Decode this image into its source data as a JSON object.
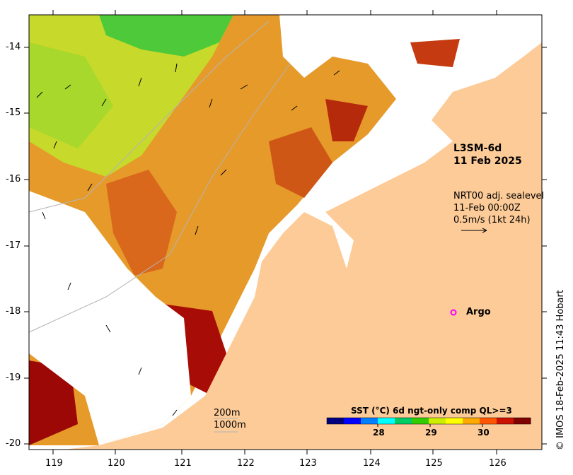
{
  "map": {
    "product": "L3SM-6d",
    "date": "11 Feb 2025",
    "current_source": "NRT00 adj. sealevel",
    "current_time": "11-Feb 00:00Z",
    "vector_scale": "0.5m/s (1kt 24h)",
    "argo_label": "Argo",
    "argo_marker": "o",
    "isobath_1": "200m",
    "isobath_2": "1000m",
    "credit": "© IMOS 18-Feb-2025 11:43 Hobart",
    "lon_ticks": [
      "119",
      "120",
      "121",
      "122",
      "123",
      "124",
      "125",
      "126"
    ],
    "lat_ticks": [
      "-14",
      "-15",
      "-16",
      "-17",
      "-18",
      "-19",
      "-20"
    ]
  },
  "colorbar": {
    "title": "SST (°C) 6d ngt-only comp QL>=3",
    "ticks": [
      "28",
      "29",
      "30"
    ],
    "colors": [
      "#00007f",
      "#0000ff",
      "#007fff",
      "#00ffff",
      "#00cc66",
      "#33cc00",
      "#ccee00",
      "#ffff00",
      "#ffaa00",
      "#ff5500",
      "#cc1100",
      "#800000"
    ]
  },
  "colors": {
    "land": "#fdcb98",
    "argo": "#ff00ff"
  }
}
